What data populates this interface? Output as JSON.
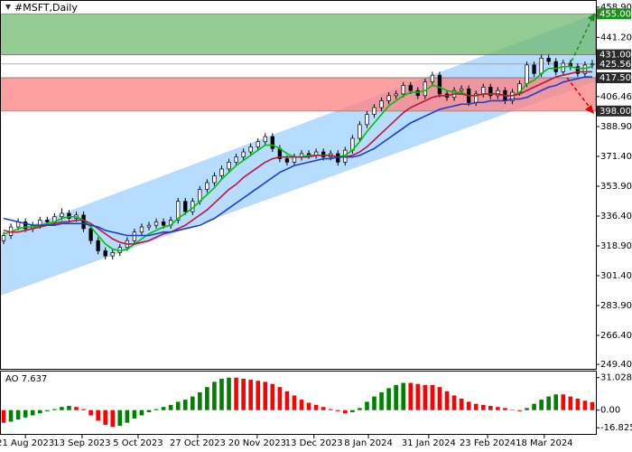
{
  "chart_data": {
    "type": "candlestick",
    "title": "#MSFT,Daily",
    "xlim": [
      -0.5,
      81.5
    ],
    "xticks": [
      {
        "value": 3,
        "label": "21 Aug 2023"
      },
      {
        "value": 10.8,
        "label": "13 Sep 2023"
      },
      {
        "value": 18.5,
        "label": "5 Oct 2023"
      },
      {
        "value": 26.7,
        "label": "27 Oct 2023"
      },
      {
        "value": 34.9,
        "label": "20 Nov 2023"
      },
      {
        "value": 42.7,
        "label": "13 Dec 2023"
      },
      {
        "value": 50.2,
        "label": "8 Jan 2024"
      },
      {
        "value": 58.5,
        "label": "31 Jan 2024"
      },
      {
        "value": 66.6,
        "label": "23 Feb 2024"
      },
      {
        "value": 74.4,
        "label": "18 Mar 2024"
      }
    ],
    "ylim": [
      246.8,
      463.1
    ],
    "yticks": [
      {
        "value": 458.9,
        "label": "458.90"
      },
      {
        "value": 441.2,
        "label": "441.20"
      },
      406.46,
      {
        "value": 388.9,
        "label": "388.90"
      },
      {
        "value": 371.4,
        "label": "371.40"
      },
      {
        "value": 353.9,
        "label": "353.90"
      },
      {
        "value": 336.4,
        "label": "336.40"
      },
      {
        "value": 318.9,
        "label": "318.90"
      },
      {
        "value": 301.4,
        "label": "301.40"
      },
      {
        "value": 283.9,
        "label": "283.90"
      },
      {
        "value": 266.4,
        "label": "266.40"
      },
      {
        "value": 249.4,
        "label": "249.40"
      }
    ],
    "levels": [
      {
        "value": 455,
        "label": "455.00",
        "color": "#1a8f1a"
      },
      {
        "value": 431,
        "label": "431.00",
        "color": "#2b2b2b"
      },
      {
        "value": 425.56,
        "label": "425.56",
        "color": "#2b2b2b"
      },
      {
        "value": 417.5,
        "label": "417.50",
        "color": "#2b2b2b"
      },
      {
        "value": 398,
        "label": "398.00",
        "color": "#2b2b2b"
      }
    ],
    "zones": [
      {
        "from": 431,
        "to": 455,
        "color": "#6fb96f"
      },
      {
        "from": 398,
        "to": 417.5,
        "color": "#ff8080"
      }
    ],
    "channel": {
      "color": "#a9d6ff",
      "upper": [
        324.2,
        455.1
      ],
      "lower": [
        289.7,
        415.4
      ]
    },
    "candles": {
      "open": [
        322,
        325,
        330,
        333,
        329,
        331,
        334,
        333,
        336,
        338,
        335,
        337,
        329,
        322,
        316,
        313,
        315,
        318,
        322,
        327,
        330,
        331,
        333,
        331,
        334,
        345,
        339,
        345,
        352,
        356,
        360,
        364,
        368,
        371,
        374,
        377,
        380,
        383,
        376,
        370,
        368,
        371,
        373,
        372,
        374,
        371,
        373,
        368,
        375,
        382,
        390,
        396,
        400,
        404,
        407,
        408,
        413,
        410,
        407,
        415,
        419,
        408,
        406,
        410,
        411,
        403,
        408,
        412,
        407,
        410,
        404,
        409,
        414,
        425,
        420,
        429,
        427,
        421,
        426,
        424,
        420,
        425
      ],
      "high": [
        327,
        332,
        335,
        335,
        333,
        336,
        336,
        338,
        341,
        340,
        339,
        339,
        331,
        324,
        318,
        317,
        320,
        324,
        329,
        332,
        333,
        335,
        335,
        336,
        347,
        347,
        347,
        354,
        358,
        362,
        366,
        370,
        373,
        376,
        379,
        382,
        385,
        385,
        378,
        372,
        373,
        375,
        375,
        376,
        376,
        375,
        375,
        377,
        384,
        392,
        398,
        402,
        406,
        409,
        410,
        415,
        415,
        412,
        417,
        421,
        421,
        410,
        412,
        413,
        413,
        410,
        414,
        414,
        412,
        412,
        411,
        416,
        427,
        427,
        431,
        431,
        429,
        428,
        428,
        426,
        427,
        428
      ],
      "low": [
        320,
        323,
        328,
        327,
        327,
        329,
        331,
        331,
        334,
        333,
        333,
        327,
        320,
        314,
        311,
        311,
        313,
        316,
        320,
        325,
        328,
        329,
        329,
        329,
        332,
        337,
        337,
        343,
        350,
        354,
        358,
        362,
        366,
        369,
        372,
        375,
        378,
        374,
        368,
        366,
        366,
        369,
        370,
        370,
        369,
        369,
        366,
        366,
        373,
        380,
        388,
        394,
        398,
        402,
        405,
        406,
        408,
        405,
        405,
        413,
        406,
        404,
        404,
        408,
        401,
        401,
        406,
        405,
        405,
        402,
        402,
        407,
        412,
        418,
        418,
        425,
        419,
        419,
        422,
        418,
        418,
        423
      ],
      "close": [
        325,
        330,
        333,
        329,
        331,
        334,
        333,
        336,
        338,
        335,
        337,
        329,
        322,
        316,
        313,
        315,
        318,
        322,
        327,
        330,
        331,
        333,
        331,
        334,
        345,
        339,
        345,
        352,
        356,
        360,
        364,
        368,
        371,
        374,
        377,
        380,
        383,
        376,
        370,
        368,
        371,
        373,
        372,
        374,
        371,
        373,
        368,
        375,
        382,
        390,
        396,
        400,
        404,
        407,
        408,
        413,
        410,
        407,
        415,
        419,
        408,
        406,
        410,
        411,
        403,
        408,
        412,
        407,
        410,
        404,
        409,
        414,
        425,
        420,
        429,
        427,
        421,
        426,
        424,
        420,
        425,
        425.56
      ],
      "up_color": "#ffffff",
      "down_color": "#000000"
    },
    "series": [
      {
        "color": "#00c000",
        "values": [
          326,
          327,
          329,
          330,
          330,
          331,
          332,
          333,
          335,
          336,
          336,
          334,
          330,
          325,
          320,
          317,
          316,
          317,
          320,
          323,
          326,
          328,
          330,
          331,
          335,
          338,
          341,
          345,
          349,
          353,
          358,
          362,
          366,
          369,
          372,
          375,
          378,
          378,
          376,
          373,
          371,
          371,
          372,
          372,
          372,
          372,
          371,
          372,
          375,
          380,
          386,
          391,
          396,
          401,
          404,
          407,
          409,
          409,
          410,
          413,
          412,
          410,
          409,
          409,
          407,
          407,
          408,
          408,
          408,
          407,
          407,
          409,
          414,
          416,
          420,
          423,
          423,
          424,
          424,
          423,
          423,
          424
        ]
      },
      {
        "color": "#c0143c",
        "values": [
          328,
          327,
          327,
          328,
          329,
          330,
          331,
          332,
          333,
          333,
          334,
          334,
          332,
          329,
          326,
          323,
          321,
          320,
          320,
          321,
          322,
          324,
          326,
          327,
          329,
          331,
          334,
          337,
          340,
          344,
          348,
          352,
          355,
          359,
          362,
          365,
          368,
          370,
          371,
          371,
          371,
          371,
          371,
          372,
          372,
          372,
          371,
          371,
          372,
          374,
          377,
          381,
          385,
          389,
          393,
          397,
          400,
          402,
          404,
          406,
          407,
          407,
          408,
          408,
          407,
          407,
          408,
          408,
          408,
          407,
          407,
          408,
          410,
          412,
          414,
          416,
          418,
          419,
          420,
          421,
          421,
          421
        ]
      },
      {
        "color": "#1a3cd8",
        "values": [
          335,
          334,
          333,
          332,
          331,
          331,
          331,
          331,
          332,
          332,
          332,
          332,
          331,
          330,
          328,
          327,
          326,
          325,
          325,
          325,
          325,
          326,
          327,
          327,
          328,
          329,
          330,
          331,
          333,
          335,
          338,
          341,
          344,
          347,
          350,
          353,
          356,
          359,
          362,
          364,
          366,
          367,
          368,
          369,
          370,
          370,
          371,
          371,
          371,
          372,
          374,
          376,
          379,
          382,
          385,
          388,
          391,
          393,
          395,
          397,
          399,
          400,
          401,
          402,
          402,
          403,
          403,
          404,
          404,
          404,
          405,
          405,
          406,
          408,
          410,
          412,
          413,
          415,
          416,
          417,
          418,
          418
        ]
      }
    ],
    "ao": {
      "title": "AO 7.637",
      "ylim": [
        -22.7,
        37.7
      ],
      "yticks": [
        31.028,
        {
          "value": 0,
          "label": "0.00"
        },
        -16.825
      ],
      "values": [
        -12,
        -11,
        -9,
        -7,
        -5,
        -3,
        -1,
        1,
        3,
        4,
        3,
        1,
        -5,
        -10,
        -14,
        -16,
        -15,
        -12,
        -8,
        -5,
        -2,
        1,
        3,
        5,
        8,
        10,
        13,
        17,
        22,
        27,
        30,
        31,
        31,
        30,
        29,
        28,
        27,
        25,
        22,
        18,
        14,
        10,
        7,
        5,
        3,
        1,
        -1,
        -3,
        -2,
        2,
        8,
        13,
        17,
        21,
        24,
        26,
        26,
        25,
        24,
        24,
        22,
        18,
        14,
        11,
        8,
        6,
        5,
        4,
        3,
        2,
        0.5,
        -1,
        2,
        6,
        10,
        13,
        15,
        15,
        13,
        11,
        9,
        7.637
      ],
      "up_color": "#008000",
      "down_color": "#ff0000"
    }
  }
}
